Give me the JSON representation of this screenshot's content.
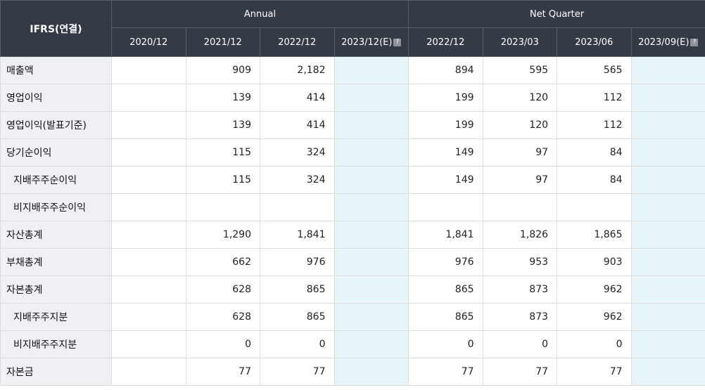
{
  "header": {
    "corner": "IFRS(연결)",
    "group_annual": "Annual",
    "group_quarter": "Net Quarter",
    "periods": [
      "2020/12",
      "2021/12",
      "2022/12",
      "2023/12(E)",
      "2022/12",
      "2023/03",
      "2023/06",
      "2023/09(E)"
    ],
    "help_icon_glyph": "?"
  },
  "rows": [
    {
      "label": "매출액",
      "values": [
        "",
        "909",
        "2,182",
        "",
        "894",
        "595",
        "565",
        ""
      ]
    },
    {
      "label": "영업이익",
      "values": [
        "",
        "139",
        "414",
        "",
        "199",
        "120",
        "112",
        ""
      ]
    },
    {
      "label": "영업이익(발표기준)",
      "values": [
        "",
        "139",
        "414",
        "",
        "199",
        "120",
        "112",
        ""
      ]
    },
    {
      "label": "당기순이익",
      "values": [
        "",
        "115",
        "324",
        "",
        "149",
        "97",
        "84",
        ""
      ]
    },
    {
      "label": "지배주주순이익",
      "values": [
        "",
        "115",
        "324",
        "",
        "149",
        "97",
        "84",
        ""
      ]
    },
    {
      "label": "비지배주주순이익",
      "values": [
        "",
        "",
        "",
        "",
        "",
        "",
        "",
        ""
      ]
    },
    {
      "label": "자산총계",
      "values": [
        "",
        "1,290",
        "1,841",
        "",
        "1,841",
        "1,826",
        "1,865",
        ""
      ]
    },
    {
      "label": "부채총계",
      "values": [
        "",
        "662",
        "976",
        "",
        "976",
        "953",
        "903",
        ""
      ]
    },
    {
      "label": "자본총계",
      "values": [
        "",
        "628",
        "865",
        "",
        "865",
        "873",
        "962",
        ""
      ]
    },
    {
      "label": "지배주주지분",
      "values": [
        "",
        "628",
        "865",
        "",
        "865",
        "873",
        "962",
        ""
      ]
    },
    {
      "label": "비지배주주지분",
      "values": [
        "",
        "0",
        "0",
        "",
        "0",
        "0",
        "0",
        ""
      ]
    },
    {
      "label": "자본금",
      "values": [
        "",
        "77",
        "77",
        "",
        "77",
        "77",
        "77",
        ""
      ]
    }
  ],
  "colors": {
    "header_bg": "#353b45",
    "label_bg": "#eef0f4",
    "estimate_bg": "#e7f4f8"
  }
}
